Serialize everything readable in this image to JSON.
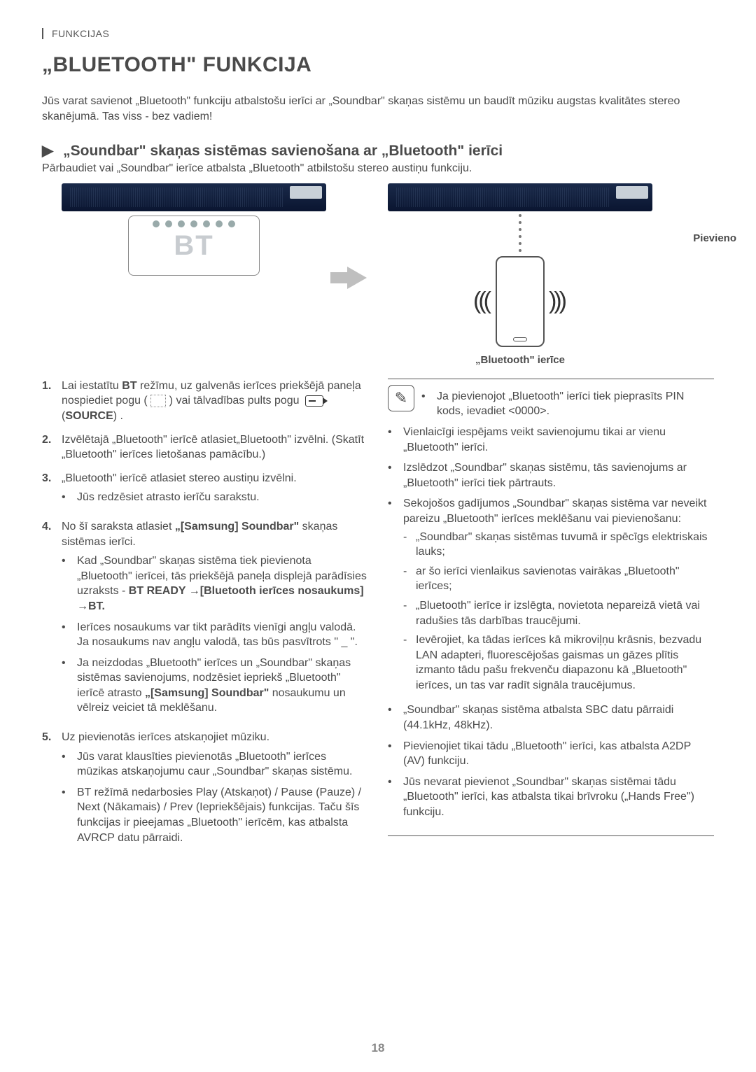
{
  "header": {
    "section": "FUNKCIJAS"
  },
  "title": "„BLUETOOTH\" FUNKCIJA",
  "intro": "Jūs varat savienot „Bluetooth\" funkciju atbalstošu ierīci ar „Soundbar\" skaņas sistēmu un baudīt mūziku augstas kvalitātes stereo skanējumā. Tas viss - bez vadiem!",
  "subhead": "„Soundbar\" skaņas sistēmas savienošana ar „Bluetooth\" ierīci",
  "subnote": "Pārbaudiet vai „Soundbar\" ierīce atbalsta „Bluetooth\" atbilstošu stereo austiņu funkciju.",
  "diagram": {
    "remote_label": "BT",
    "connect_label": "Pievieno",
    "device_caption": "„Bluetooth\" ierīce"
  },
  "steps": {
    "s1a": "Lai iestatītu ",
    "s1b": " režīmu, uz galvenās ierīces priekšējā paneļa nospiediet pogu (",
    "s1c": ") vai tālvadības pults pogu ",
    "s1d": " (",
    "s1e": ") .",
    "s1_bt": "BT",
    "s1_source": "SOURCE",
    "s2": "Izvēlētajā „Bluetooth\" ierīcē atlasiet„Bluetooth\" izvēlni. (Skatīt „Bluetooth\" ierīces lietošanas pamācību.)",
    "s3": "„Bluetooth\" ierīcē atlasiet stereo austiņu izvēlni.",
    "s3_b1": "Jūs redzēsiet atrasto ierīču sarakstu.",
    "s4a": "No šī saraksta atlasiet ",
    "s4b": " skaņas sistēmas ierīci.",
    "s4_strong": "„[Samsung] Soundbar\"",
    "s4_b1a": "Kad „Soundbar\" skaņas sistēma tiek pievienota „Bluetooth\" ierīcei, tās priekšējā paneļa displejā parādīsies uzraksts - ",
    "s4_b1b": "BT READY →[Bluetooth ierīces nosaukums] →BT.",
    "s4_b2": "Ierīces nosaukums var tikt parādīts vienīgi angļu valodā. Ja nosaukums nav angļu valodā, tas būs pasvītrots \" _ \".",
    "s4_b3a": "Ja neizdodas „Bluetooth\" ierīces un „Soundbar\" skaņas sistēmas savienojums, nodzēsiet iepriekš „Bluetooth\" ierīcē atrasto ",
    "s4_b3b": "„[Samsung] Soundbar\"",
    "s4_b3c": " nosaukumu un vēlreiz veiciet tā meklēšanu.",
    "s5": "Uz pievienotās ierīces atskaņojiet mūziku.",
    "s5_b1": "Jūs varat klausīties pievienotās „Bluetooth\" ierīces mūzikas atskaņojumu caur „Soundbar\" skaņas sistēmu.",
    "s5_b2": "BT režīmā nedarbosies Play (Atskaņot) / Pause (Pauze) / Next (Nākamais) / Prev (Iepriekšējais) funkcijas. Taču šīs funkcijas ir pieejamas „Bluetooth\" ierīcēm, kas atbalsta AVRCP datu pārraidi."
  },
  "notes": {
    "n1": "Ja pievienojot „Bluetooth\" ierīci tiek pieprasīts PIN kods, ievadiet <0000>.",
    "n2": "Vienlaicīgi iespējams veikt savienojumu tikai ar vienu „Bluetooth\" ierīci.",
    "n3": "Izslēdzot „Soundbar\" skaņas sistēmu, tās savienojums ar „Bluetooth\" ierīci tiek pārtrauts.",
    "n4": "Sekojošos gadījumos „Soundbar\" skaņas sistēma var neveikt pareizu „Bluetooth\" ierīces meklēšanu vai pievienošanu:",
    "n4_1": "„Soundbar\" skaņas sistēmas tuvumā ir spēcīgs elektriskais lauks;",
    "n4_2": "ar šo ierīci vienlaikus savienotas vairākas „Bluetooth\" ierīces;",
    "n4_3": "„Bluetooth\" ierīce ir izslēgta, novietota nepareizā vietā vai radušies tās darbības traucējumi.",
    "n4_4": "Ievērojiet, ka tādas ierīces kā mikroviļņu krāsnis, bezvadu LAN adapteri, fluorescējošas gaismas un gāzes plītis izmanto tādu pašu frekvenču diapazonu kā „Bluetooth\" ierīces, un tas var radīt signāla traucējumus.",
    "n5": "„Soundbar\" skaņas sistēma atbalsta SBC datu pārraidi (44.1kHz, 48kHz).",
    "n6": "Pievienojiet tikai tādu „Bluetooth\" ierīci, kas atbalsta A2DP (AV) funkciju.",
    "n7": "Jūs nevarat pievienot „Soundbar\" skaņas sistēmai tādu „Bluetooth\" ierīci, kas atbalsta tikai brīvroku („Hands Free\") funkciju."
  },
  "page_number": "18"
}
